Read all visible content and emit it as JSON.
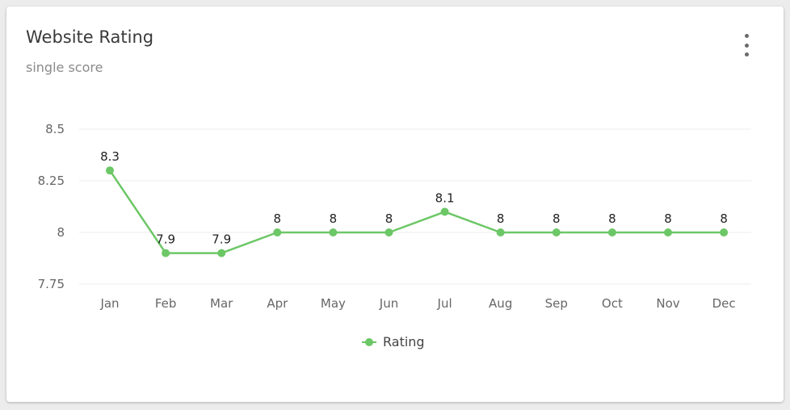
{
  "card": {
    "title": "Website Rating",
    "subtitle": "single score",
    "menu_icon": "more-vertical-icon"
  },
  "legend": {
    "label": "Rating"
  },
  "colors": {
    "series": "#6cc766",
    "grid": "#eeeeee",
    "axis_text": "#666666",
    "data_label": "#222222"
  },
  "chart_data": {
    "type": "line",
    "categories": [
      "Jan",
      "Feb",
      "Mar",
      "Apr",
      "May",
      "Jun",
      "Jul",
      "Aug",
      "Sep",
      "Oct",
      "Nov",
      "Dec"
    ],
    "series": [
      {
        "name": "Rating",
        "values": [
          8.3,
          7.9,
          7.9,
          8,
          8,
          8,
          8.1,
          8,
          8,
          8,
          8,
          8
        ],
        "labels": [
          "8.3",
          "7.9",
          "7.9",
          "8",
          "8",
          "8",
          "8.1",
          "8",
          "8",
          "8",
          "8",
          "8"
        ]
      }
    ],
    "yticks": [
      7.75,
      8,
      8.25,
      8.5
    ],
    "ytick_labels": [
      "7.75",
      "8",
      "8.25",
      "8.5"
    ],
    "ylim": [
      7.75,
      8.5
    ],
    "grid": true,
    "legend_position": "bottom-center"
  }
}
